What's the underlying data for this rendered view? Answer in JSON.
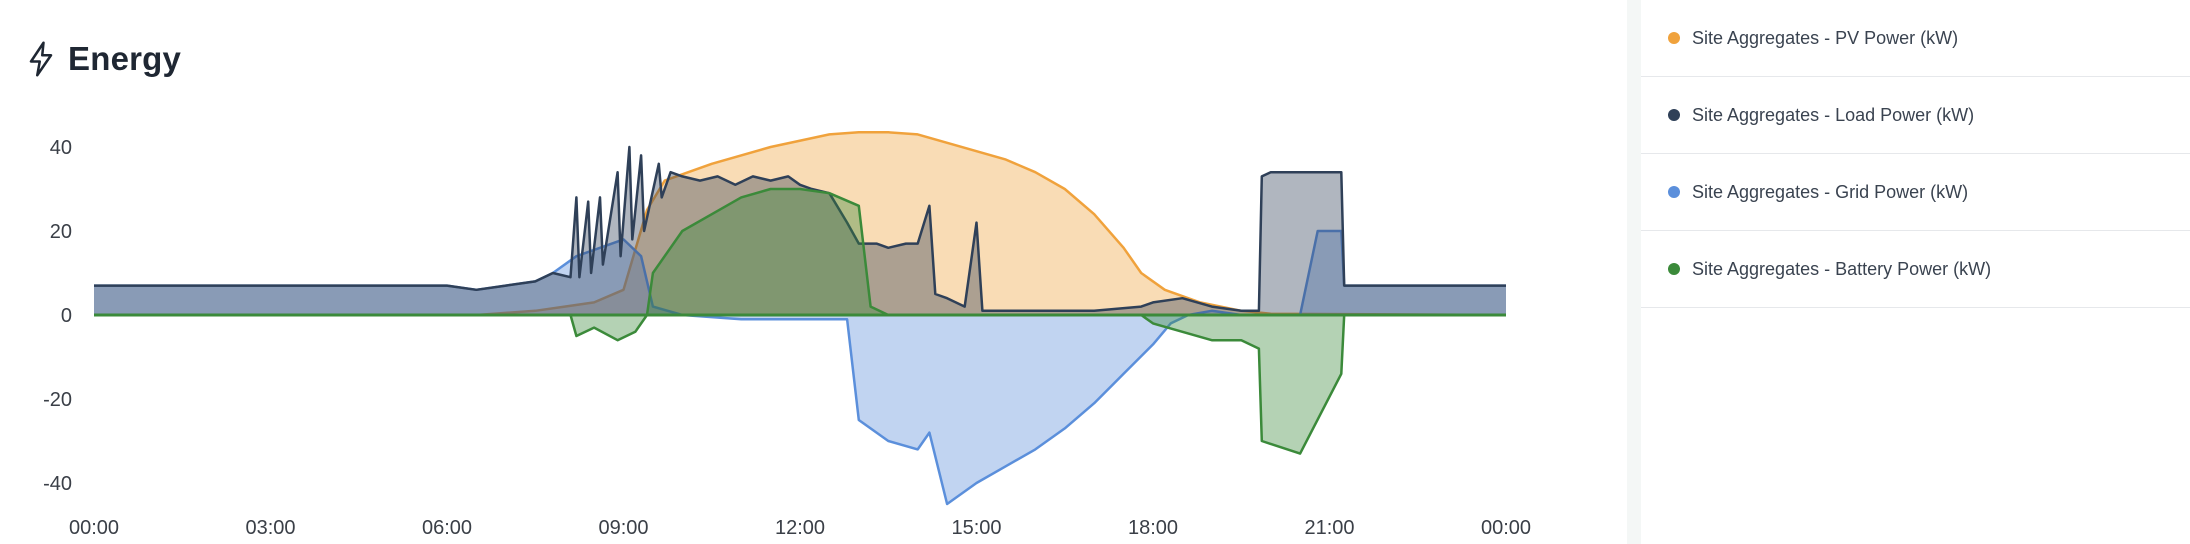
{
  "header": {
    "title": "Energy",
    "icon": "lightning-icon"
  },
  "colors": {
    "pv": "#f0a23c",
    "load": "#2f4058",
    "grid": "#5b8fdb",
    "battery": "#3b8a3a",
    "zero_line": "#3b8a3a"
  },
  "legend": {
    "items": [
      {
        "key": "pv",
        "label": "Site Aggregates - PV Power (kW)"
      },
      {
        "key": "load",
        "label": "Site Aggregates - Load Power (kW)"
      },
      {
        "key": "grid",
        "label": "Site Aggregates - Grid Power (kW)"
      },
      {
        "key": "battery",
        "label": "Site Aggregates - Battery Power (kW)"
      }
    ]
  },
  "chart_data": {
    "type": "area",
    "x_axis": {
      "min_hours": 0,
      "max_hours": 24,
      "ticks": [
        "00:00",
        "03:00",
        "06:00",
        "09:00",
        "12:00",
        "15:00",
        "18:00",
        "21:00",
        "00:00"
      ]
    },
    "y_axis": {
      "min": -50,
      "max": 50,
      "ticks": [
        40,
        20,
        0,
        -20,
        -40
      ]
    },
    "grid": false,
    "legend_position": "right",
    "series": [
      {
        "key": "pv",
        "name": "Site Aggregates - PV Power (kW)",
        "points": [
          [
            0,
            0
          ],
          [
            6.5,
            0
          ],
          [
            7,
            0.5
          ],
          [
            7.5,
            1
          ],
          [
            8,
            2
          ],
          [
            8.5,
            3
          ],
          [
            9,
            6
          ],
          [
            9.4,
            25
          ],
          [
            9.7,
            32
          ],
          [
            10.5,
            36
          ],
          [
            11.5,
            40
          ],
          [
            12.5,
            43
          ],
          [
            13,
            43.5
          ],
          [
            13.5,
            43.5
          ],
          [
            14,
            43
          ],
          [
            14.5,
            41
          ],
          [
            15,
            39
          ],
          [
            15.5,
            37
          ],
          [
            16,
            34
          ],
          [
            16.5,
            30
          ],
          [
            17,
            24
          ],
          [
            17.5,
            16
          ],
          [
            17.8,
            10
          ],
          [
            18.2,
            6
          ],
          [
            18.8,
            3
          ],
          [
            19.5,
            1
          ],
          [
            20,
            0.3
          ],
          [
            24,
            0
          ]
        ]
      },
      {
        "key": "load",
        "name": "Site Aggregates - Load Power (kW)",
        "points": [
          [
            0,
            7
          ],
          [
            1,
            7
          ],
          [
            2,
            7
          ],
          [
            3,
            7
          ],
          [
            4,
            7
          ],
          [
            5,
            7
          ],
          [
            6,
            7
          ],
          [
            6.5,
            6
          ],
          [
            7,
            7
          ],
          [
            7.5,
            8
          ],
          [
            7.8,
            10
          ],
          [
            8.1,
            9
          ],
          [
            8.2,
            28
          ],
          [
            8.25,
            9
          ],
          [
            8.4,
            27
          ],
          [
            8.45,
            10
          ],
          [
            8.6,
            28
          ],
          [
            8.65,
            12
          ],
          [
            8.9,
            34
          ],
          [
            8.95,
            14
          ],
          [
            9.1,
            40
          ],
          [
            9.15,
            18
          ],
          [
            9.3,
            38
          ],
          [
            9.35,
            20
          ],
          [
            9.6,
            36
          ],
          [
            9.65,
            28
          ],
          [
            9.8,
            34
          ],
          [
            10,
            33
          ],
          [
            10.3,
            32
          ],
          [
            10.6,
            33
          ],
          [
            10.9,
            31
          ],
          [
            11.2,
            33
          ],
          [
            11.5,
            32
          ],
          [
            11.8,
            33
          ],
          [
            12,
            31
          ],
          [
            12.2,
            30
          ],
          [
            12.5,
            29
          ],
          [
            12.8,
            22
          ],
          [
            13,
            17
          ],
          [
            13.3,
            17
          ],
          [
            13.5,
            16
          ],
          [
            13.8,
            17
          ],
          [
            14,
            17
          ],
          [
            14.2,
            26
          ],
          [
            14.3,
            5
          ],
          [
            14.5,
            4
          ],
          [
            14.8,
            2
          ],
          [
            15,
            22
          ],
          [
            15.1,
            1
          ],
          [
            16,
            1
          ],
          [
            17,
            1
          ],
          [
            17.8,
            2
          ],
          [
            18,
            3
          ],
          [
            18.5,
            4
          ],
          [
            19,
            2
          ],
          [
            19.5,
            1
          ],
          [
            19.8,
            1
          ],
          [
            19.85,
            33
          ],
          [
            20,
            34
          ],
          [
            21,
            34
          ],
          [
            21.2,
            34
          ],
          [
            21.25,
            7
          ],
          [
            22,
            7
          ],
          [
            23,
            7
          ],
          [
            24,
            7
          ]
        ]
      },
      {
        "key": "grid",
        "name": "Site Aggregates - Grid Power (kW)",
        "points": [
          [
            0,
            7
          ],
          [
            1,
            7
          ],
          [
            2,
            7
          ],
          [
            3,
            7
          ],
          [
            4,
            7
          ],
          [
            5,
            7
          ],
          [
            6,
            7
          ],
          [
            6.5,
            6
          ],
          [
            7,
            7
          ],
          [
            7.5,
            8
          ],
          [
            7.8,
            10
          ],
          [
            8.2,
            14
          ],
          [
            8.6,
            16
          ],
          [
            9,
            18
          ],
          [
            9.3,
            14
          ],
          [
            9.5,
            2
          ],
          [
            10,
            0
          ],
          [
            11,
            -1
          ],
          [
            12,
            -1
          ],
          [
            12.8,
            -1
          ],
          [
            13,
            -25
          ],
          [
            13.5,
            -30
          ],
          [
            14,
            -32
          ],
          [
            14.2,
            -28
          ],
          [
            14.5,
            -45
          ],
          [
            15,
            -40
          ],
          [
            15.5,
            -36
          ],
          [
            16,
            -32
          ],
          [
            16.5,
            -27
          ],
          [
            17,
            -21
          ],
          [
            17.5,
            -14
          ],
          [
            18,
            -7
          ],
          [
            18.3,
            -2
          ],
          [
            18.6,
            0
          ],
          [
            19,
            1
          ],
          [
            19.5,
            0
          ],
          [
            20,
            0
          ],
          [
            20.5,
            0
          ],
          [
            20.8,
            20
          ],
          [
            21.2,
            20
          ],
          [
            21.25,
            7
          ],
          [
            22,
            7
          ],
          [
            23,
            7
          ],
          [
            24,
            7
          ]
        ]
      },
      {
        "key": "battery",
        "name": "Site Aggregates - Battery Power (kW)",
        "points": [
          [
            0,
            0
          ],
          [
            8.1,
            0
          ],
          [
            8.2,
            -5
          ],
          [
            8.5,
            -3
          ],
          [
            8.9,
            -6
          ],
          [
            9.2,
            -4
          ],
          [
            9.4,
            0
          ],
          [
            9.5,
            10
          ],
          [
            10,
            20
          ],
          [
            10.5,
            24
          ],
          [
            11,
            28
          ],
          [
            11.5,
            30
          ],
          [
            12,
            30
          ],
          [
            12.5,
            29
          ],
          [
            13,
            26
          ],
          [
            13.2,
            2
          ],
          [
            13.5,
            0
          ],
          [
            17.8,
            0
          ],
          [
            18,
            -2
          ],
          [
            18.5,
            -4
          ],
          [
            19,
            -6
          ],
          [
            19.5,
            -6
          ],
          [
            19.8,
            -8
          ],
          [
            19.85,
            -30
          ],
          [
            20.5,
            -33
          ],
          [
            21.2,
            -14
          ],
          [
            21.25,
            0
          ],
          [
            24,
            0
          ]
        ]
      }
    ]
  }
}
